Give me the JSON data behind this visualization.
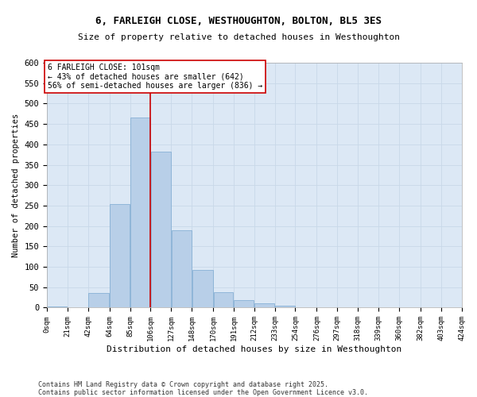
{
  "title_line1": "6, FARLEIGH CLOSE, WESTHOUGHTON, BOLTON, BL5 3ES",
  "title_line2": "Size of property relative to detached houses in Westhoughton",
  "xlabel": "Distribution of detached houses by size in Westhoughton",
  "ylabel": "Number of detached properties",
  "bar_color": "#b8cfe8",
  "bar_edgecolor": "#7aa8d0",
  "bins": [
    0,
    21,
    42,
    64,
    85,
    106,
    127,
    148,
    170,
    191,
    212,
    233,
    254,
    276,
    297,
    318,
    339,
    360,
    382,
    403,
    424
  ],
  "bin_labels": [
    "0sqm",
    "21sqm",
    "42sqm",
    "64sqm",
    "85sqm",
    "106sqm",
    "127sqm",
    "148sqm",
    "170sqm",
    "191sqm",
    "212sqm",
    "233sqm",
    "254sqm",
    "276sqm",
    "297sqm",
    "318sqm",
    "339sqm",
    "360sqm",
    "382sqm",
    "403sqm",
    "424sqm"
  ],
  "counts": [
    2,
    0,
    35,
    253,
    466,
    382,
    190,
    93,
    37,
    18,
    10,
    4,
    1,
    0,
    1,
    0,
    0,
    0,
    0,
    0
  ],
  "vline_x": 106,
  "vline_color": "#cc0000",
  "annotation_text": "6 FARLEIGH CLOSE: 101sqm\n← 43% of detached houses are smaller (642)\n56% of semi-detached houses are larger (836) →",
  "ylim": [
    0,
    600
  ],
  "yticks": [
    0,
    50,
    100,
    150,
    200,
    250,
    300,
    350,
    400,
    450,
    500,
    550,
    600
  ],
  "grid_color": "#c8d8e8",
  "bg_color": "#dce8f5",
  "fig_bg_color": "#ffffff",
  "footer_line1": "Contains HM Land Registry data © Crown copyright and database right 2025.",
  "footer_line2": "Contains public sector information licensed under the Open Government Licence v3.0."
}
